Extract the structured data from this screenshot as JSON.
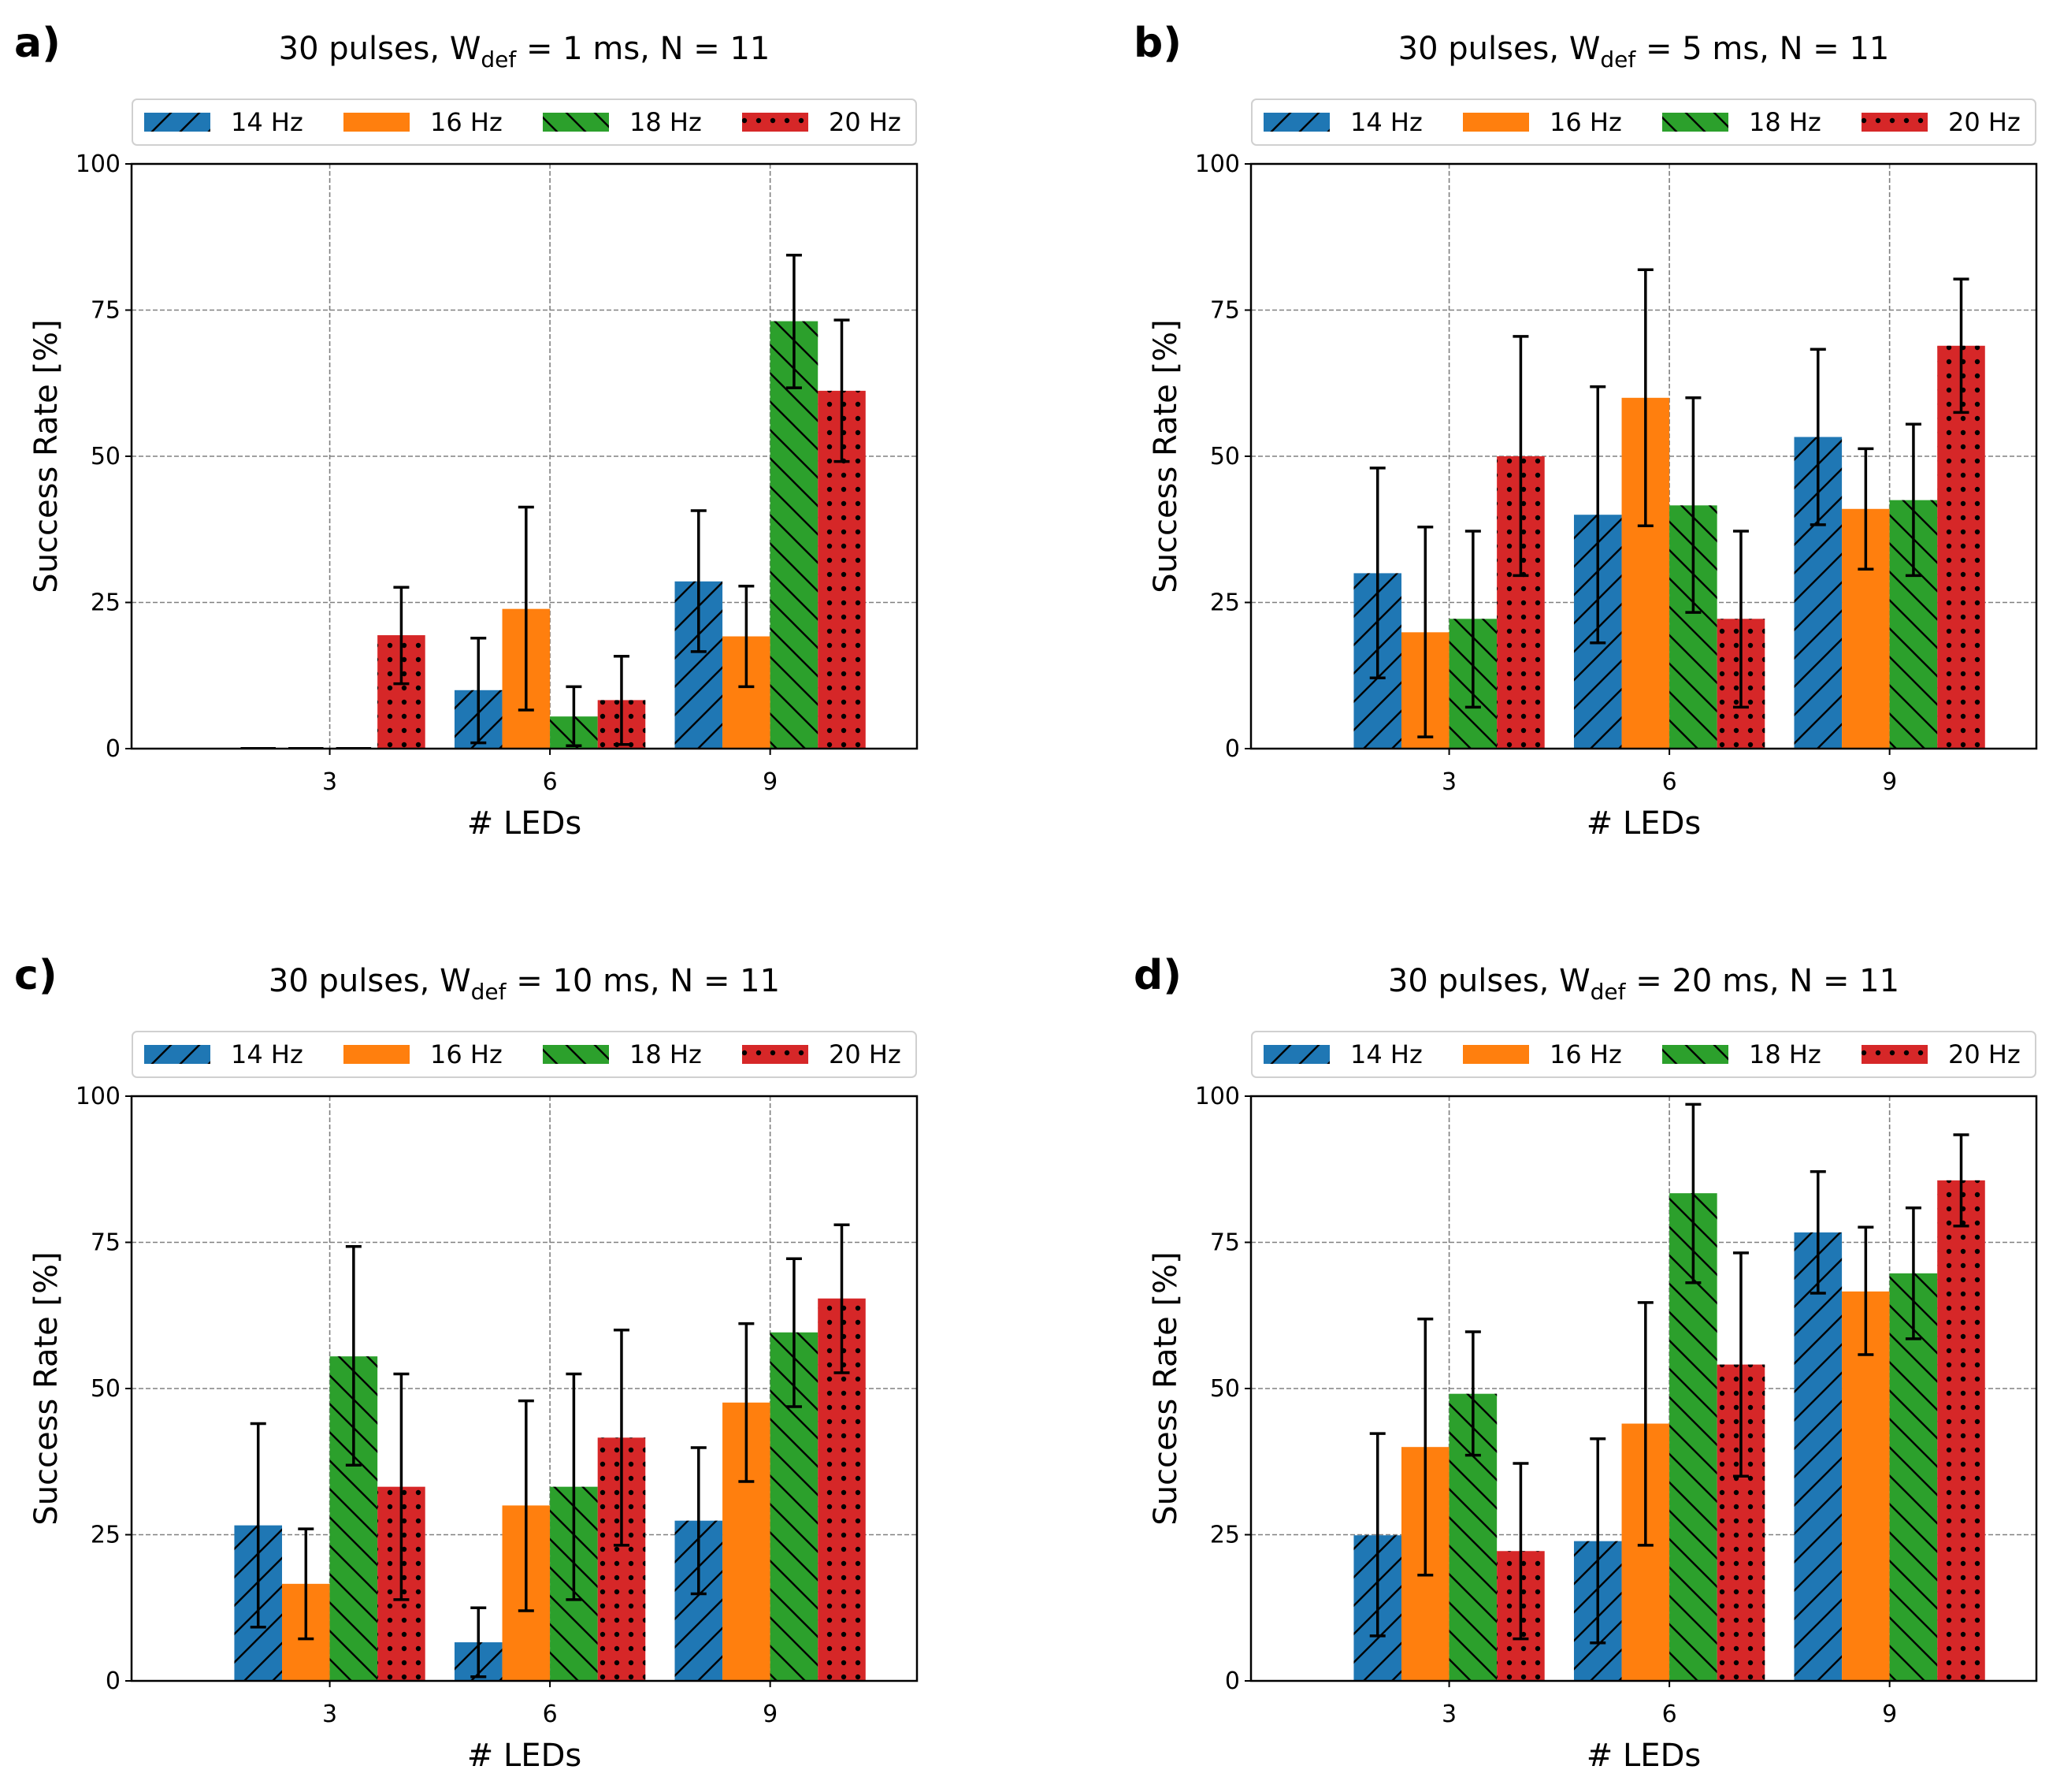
{
  "figure": {
    "series_colors": {
      "14 Hz": "#1f77b4",
      "16 Hz": "#ff7f0e",
      "18 Hz": "#2ca02c",
      "20 Hz": "#d62728"
    },
    "series_hatch": {
      "14 Hz": "forward-slash",
      "16 Hz": "none",
      "18 Hz": "back-slash",
      "20 Hz": "dots"
    }
  },
  "chart_data": [
    {
      "type": "bar",
      "panel_label": "a)",
      "title": {
        "prefix": "30 pulses, W",
        "subscript": "def",
        "suffix": " = 1 ms, N = 11"
      },
      "xlabel": "# LEDs",
      "ylabel": "Success Rate [%]",
      "categories": [
        "3",
        "6",
        "9"
      ],
      "yticks": [
        "0",
        "25",
        "50",
        "75",
        "100"
      ],
      "ylim": [
        0,
        100
      ],
      "grid": true,
      "legend": "top-center",
      "series": [
        {
          "name": "14 Hz",
          "values": [
            0,
            10.0,
            28.6
          ],
          "err_low": [
            0,
            1.0,
            16.6
          ],
          "err_high": [
            0,
            18.9,
            40.7
          ]
        },
        {
          "name": "16 Hz",
          "values": [
            0,
            23.9,
            19.2
          ],
          "err_low": [
            0,
            6.6,
            10.6
          ],
          "err_high": [
            0,
            41.3,
            27.8
          ]
        },
        {
          "name": "18 Hz",
          "values": [
            0,
            5.5,
            73.1
          ],
          "err_low": [
            0,
            0.5,
            61.7
          ],
          "err_high": [
            0,
            10.6,
            84.4
          ]
        },
        {
          "name": "20 Hz",
          "values": [
            19.4,
            8.3,
            61.2
          ],
          "err_low": [
            11.1,
            0.7,
            49.1
          ],
          "err_high": [
            27.6,
            15.8,
            73.3
          ]
        }
      ]
    },
    {
      "type": "bar",
      "panel_label": "b)",
      "title": {
        "prefix": "30 pulses, W",
        "subscript": "def",
        "suffix": " = 5 ms, N = 11"
      },
      "xlabel": "# LEDs",
      "ylabel": "Success Rate [%]",
      "categories": [
        "3",
        "6",
        "9"
      ],
      "yticks": [
        "0",
        "25",
        "50",
        "75",
        "100"
      ],
      "ylim": [
        0,
        100
      ],
      "grid": true,
      "legend": "top-center",
      "series": [
        {
          "name": "14 Hz",
          "values": [
            30.0,
            40.0,
            53.3
          ],
          "err_low": [
            12.1,
            18.1,
            38.3
          ],
          "err_high": [
            48.0,
            61.9,
            68.3
          ]
        },
        {
          "name": "16 Hz",
          "values": [
            19.9,
            60.0,
            41.0
          ],
          "err_low": [
            2.0,
            38.1,
            30.7
          ],
          "err_high": [
            37.9,
            81.9,
            51.3
          ]
        },
        {
          "name": "18 Hz",
          "values": [
            22.2,
            41.6,
            42.5
          ],
          "err_low": [
            7.1,
            23.3,
            29.6
          ],
          "err_high": [
            37.2,
            60.0,
            55.5
          ]
        },
        {
          "name": "20 Hz",
          "values": [
            50.0,
            22.2,
            68.9
          ],
          "err_low": [
            29.6,
            7.1,
            57.5
          ],
          "err_high": [
            70.5,
            37.2,
            80.3
          ]
        }
      ]
    },
    {
      "type": "bar",
      "panel_label": "c)",
      "title": {
        "prefix": "30 pulses, W",
        "subscript": "def",
        "suffix": " = 10 ms, N = 11"
      },
      "xlabel": "# LEDs",
      "ylabel": "Success Rate [%]",
      "categories": [
        "3",
        "6",
        "9"
      ],
      "yticks": [
        "0",
        "25",
        "50",
        "75",
        "100"
      ],
      "ylim": [
        0,
        100
      ],
      "grid": true,
      "legend": "top-center",
      "series": [
        {
          "name": "14 Hz",
          "values": [
            26.6,
            6.6,
            27.4
          ],
          "err_low": [
            9.2,
            0.7,
            14.9
          ],
          "err_high": [
            44.0,
            12.5,
            39.9
          ]
        },
        {
          "name": "16 Hz",
          "values": [
            16.6,
            30.0,
            47.6
          ],
          "err_low": [
            7.2,
            12.0,
            34.1
          ],
          "err_high": [
            26.0,
            47.9,
            61.1
          ]
        },
        {
          "name": "18 Hz",
          "values": [
            55.5,
            33.2,
            59.6
          ],
          "err_low": [
            36.9,
            13.9,
            46.9
          ],
          "err_high": [
            74.3,
            52.5,
            72.2
          ]
        },
        {
          "name": "20 Hz",
          "values": [
            33.2,
            41.6,
            65.4
          ],
          "err_low": [
            13.9,
            23.2,
            52.7
          ],
          "err_high": [
            52.5,
            60.0,
            78.0
          ]
        }
      ]
    },
    {
      "type": "bar",
      "panel_label": "d)",
      "title": {
        "prefix": "30 pulses, W",
        "subscript": "def",
        "suffix": " = 20 ms, N = 11"
      },
      "xlabel": "# LEDs",
      "ylabel": "Success Rate [%]",
      "categories": [
        "3",
        "6",
        "9"
      ],
      "yticks": [
        "0",
        "25",
        "50",
        "75",
        "100"
      ],
      "ylim": [
        0,
        100
      ],
      "grid": true,
      "legend": "top-center",
      "series": [
        {
          "name": "14 Hz",
          "values": [
            24.9,
            23.9,
            76.7
          ],
          "err_low": [
            7.7,
            6.5,
            66.3
          ],
          "err_high": [
            42.3,
            41.4,
            87.1
          ]
        },
        {
          "name": "16 Hz",
          "values": [
            40.0,
            44.0,
            66.6
          ],
          "err_low": [
            18.1,
            23.2,
            55.8
          ],
          "err_high": [
            61.9,
            64.7,
            77.6
          ]
        },
        {
          "name": "18 Hz",
          "values": [
            49.1,
            83.4,
            69.7
          ],
          "err_low": [
            38.6,
            68.1,
            58.5
          ],
          "err_high": [
            59.7,
            98.6,
            80.9
          ]
        },
        {
          "name": "20 Hz",
          "values": [
            22.2,
            54.1,
            85.6
          ],
          "err_low": [
            7.2,
            35.0,
            77.8
          ],
          "err_high": [
            37.2,
            73.2,
            93.4
          ]
        }
      ]
    }
  ]
}
